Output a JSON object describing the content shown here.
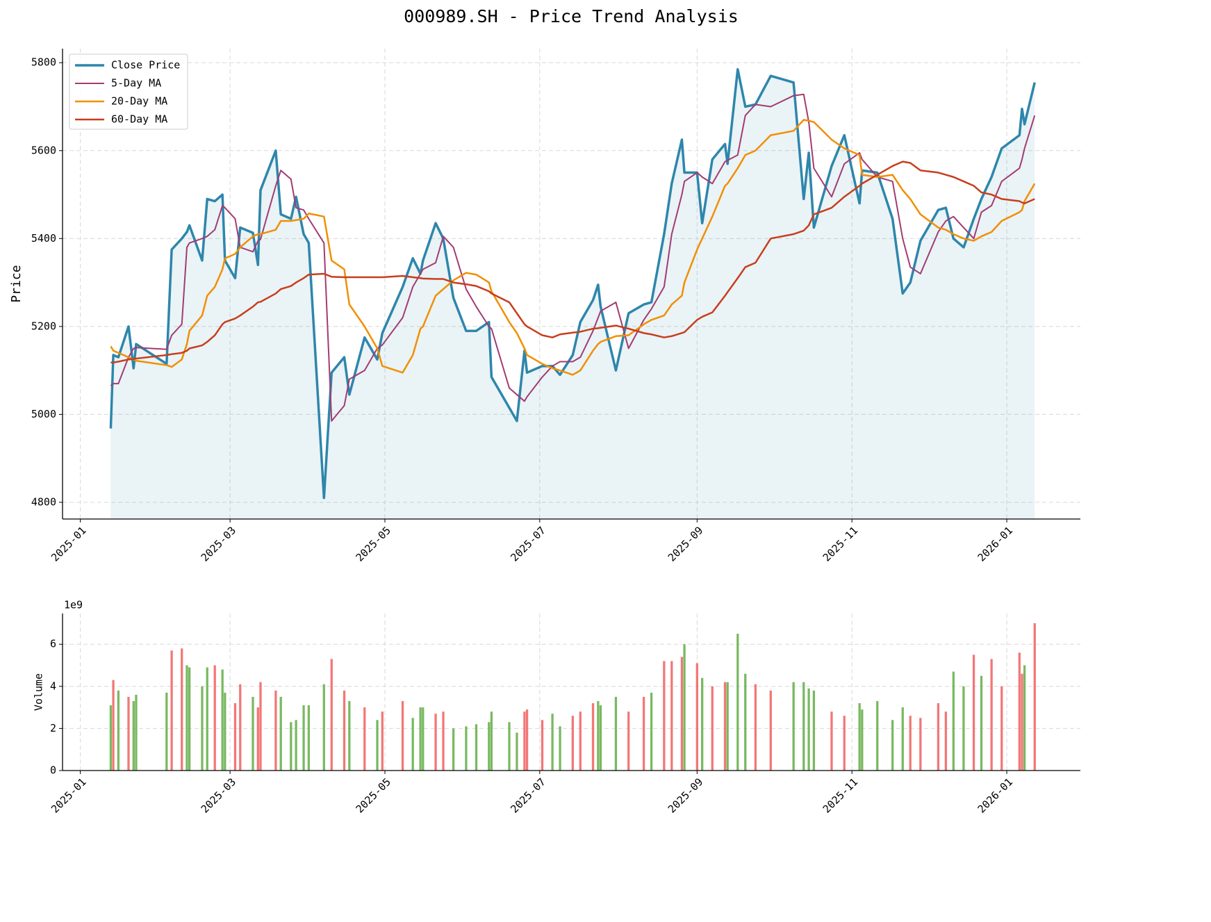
{
  "chart_data": [
    {
      "type": "line",
      "title": "000989.SH - Price Trend Analysis",
      "ylabel": "Price",
      "x": [
        12,
        13,
        15,
        19,
        21,
        22,
        34,
        36,
        40,
        42,
        43,
        48,
        50,
        53,
        56,
        57,
        61,
        63,
        68,
        70,
        71,
        77,
        79,
        83,
        85,
        88,
        90,
        96,
        99,
        104,
        106,
        112,
        117,
        119,
        127,
        131,
        134,
        135,
        140,
        143,
        147,
        152,
        156,
        161,
        162,
        169,
        172,
        175,
        176,
        182,
        186,
        189,
        194,
        197,
        202,
        204,
        205,
        211,
        216,
        222,
        225,
        230,
        233,
        237,
        238,
        243,
        245,
        249,
        254,
        255,
        259,
        262,
        266,
        272,
        281,
        285,
        287,
        289,
        296,
        301,
        307,
        308,
        314,
        320,
        324,
        327,
        331,
        338,
        341,
        344,
        348,
        352,
        355,
        359,
        363,
        370,
        371,
        372,
        376
      ],
      "series": [
        {
          "name": "Close Price",
          "color": "#2e86ab",
          "linewidth": 3.5,
          "fill": true,
          "values": [
            4968,
            5135,
            5130,
            5200,
            5105,
            5160,
            5115,
            5375,
            5400,
            5415,
            5430,
            5350,
            5490,
            5485,
            5500,
            5350,
            5310,
            5425,
            5413,
            5340,
            5510,
            5600,
            5455,
            5445,
            5495,
            5410,
            5390,
            4810,
            5095,
            5130,
            5045,
            5175,
            5125,
            5185,
            5290,
            5355,
            5320,
            5350,
            5435,
            5400,
            5265,
            5190,
            5190,
            5210,
            5085,
            5015,
            4985,
            5145,
            5095,
            5110,
            5110,
            5090,
            5135,
            5210,
            5260,
            5295,
            5245,
            5100,
            5230,
            5250,
            5255,
            5410,
            5525,
            5625,
            5550,
            5550,
            5435,
            5580,
            5615,
            5570,
            5785,
            5700,
            5705,
            5770,
            5755,
            5490,
            5595,
            5425,
            5565,
            5635,
            5480,
            5555,
            5550,
            5445,
            5275,
            5300,
            5395,
            5465,
            5470,
            5400,
            5380,
            5445,
            5490,
            5540,
            5605,
            5635,
            5695,
            5660,
            5755
          ]
        },
        {
          "name": "5-Day MA",
          "color": "#a23b72",
          "linewidth": 2,
          "values": [
            5065,
            5070,
            5070,
            5130,
            5150,
            5152,
            5148,
            5180,
            5205,
            5380,
            5390,
            5400,
            5405,
            5420,
            5475,
            5470,
            5445,
            5380,
            5370,
            5395,
            5398,
            5520,
            5555,
            5535,
            5470,
            5465,
            5445,
            5390,
            4985,
            5020,
            5080,
            5100,
            5150,
            5158,
            5220,
            5290,
            5320,
            5330,
            5345,
            5405,
            5380,
            5285,
            5245,
            5200,
            5195,
            5060,
            5045,
            5030,
            5040,
            5085,
            5110,
            5120,
            5120,
            5130,
            5190,
            5220,
            5235,
            5255,
            5150,
            5215,
            5240,
            5290,
            5410,
            5500,
            5530,
            5550,
            5540,
            5525,
            5575,
            5578,
            5590,
            5680,
            5705,
            5700,
            5725,
            5728,
            5665,
            5560,
            5495,
            5570,
            5595,
            5580,
            5540,
            5530,
            5400,
            5335,
            5320,
            5415,
            5440,
            5450,
            5425,
            5400,
            5460,
            5475,
            5530,
            5560,
            5580,
            5605,
            5680
          ]
        },
        {
          "name": "20-Day MA",
          "color": "#f18f01",
          "linewidth": 2.5,
          "values": [
            5155,
            5145,
            5140,
            5130,
            5125,
            5122,
            5112,
            5108,
            5125,
            5160,
            5190,
            5225,
            5270,
            5290,
            5330,
            5355,
            5365,
            5380,
            5405,
            5410,
            5410,
            5420,
            5440,
            5440,
            5442,
            5445,
            5457,
            5450,
            5350,
            5330,
            5250,
            5200,
            5150,
            5110,
            5095,
            5135,
            5195,
            5200,
            5270,
            5285,
            5305,
            5322,
            5318,
            5300,
            5280,
            5210,
            5185,
            5150,
            5135,
            5115,
            5105,
            5100,
            5090,
            5100,
            5145,
            5160,
            5165,
            5178,
            5180,
            5205,
            5215,
            5225,
            5250,
            5270,
            5300,
            5375,
            5400,
            5450,
            5520,
            5525,
            5560,
            5590,
            5600,
            5635,
            5645,
            5670,
            5668,
            5665,
            5625,
            5605,
            5590,
            5545,
            5540,
            5545,
            5510,
            5490,
            5455,
            5425,
            5420,
            5410,
            5400,
            5395,
            5405,
            5415,
            5440,
            5460,
            5465,
            5485,
            5525
          ]
        },
        {
          "name": "60-Day MA",
          "color": "#c73e1d",
          "linewidth": 2.5,
          "values": [
            5118,
            5118,
            5120,
            5125,
            5126,
            5127,
            5135,
            5137,
            5140,
            5145,
            5150,
            5157,
            5165,
            5180,
            5205,
            5210,
            5218,
            5225,
            5245,
            5255,
            5256,
            5275,
            5285,
            5292,
            5300,
            5310,
            5318,
            5320,
            5313,
            5312,
            5312,
            5312,
            5312,
            5312,
            5315,
            5312,
            5310,
            5309,
            5308,
            5308,
            5300,
            5296,
            5292,
            5280,
            5275,
            5255,
            5230,
            5205,
            5200,
            5180,
            5175,
            5182,
            5186,
            5188,
            5195,
            5196,
            5197,
            5202,
            5195,
            5185,
            5182,
            5175,
            5178,
            5185,
            5187,
            5215,
            5222,
            5232,
            5270,
            5278,
            5310,
            5335,
            5345,
            5400,
            5410,
            5418,
            5430,
            5455,
            5470,
            5495,
            5520,
            5525,
            5545,
            5565,
            5575,
            5572,
            5555,
            5550,
            5545,
            5540,
            5530,
            5520,
            5505,
            5500,
            5490,
            5485,
            5482,
            5480,
            5490
          ]
        }
      ],
      "xlim": [
        -7,
        394
      ],
      "xticks": [
        {
          "value": 0,
          "label": "2025-01"
        },
        {
          "value": 59,
          "label": "2025-03"
        },
        {
          "value": 120,
          "label": "2025-05"
        },
        {
          "value": 181,
          "label": "2025-07"
        },
        {
          "value": 243,
          "label": "2025-09"
        },
        {
          "value": 304,
          "label": "2025-11"
        },
        {
          "value": 365,
          "label": "2026-01"
        }
      ],
      "ylim": [
        4762,
        5832
      ],
      "yticks": [
        4800,
        5000,
        5200,
        5400,
        5600,
        5800
      ],
      "grid": true,
      "legend": "upper left"
    },
    {
      "type": "bar",
      "ylabel": "Volume",
      "offset_text": "1e9",
      "x": [
        12,
        13,
        15,
        19,
        21,
        22,
        34,
        36,
        40,
        42,
        43,
        48,
        50,
        53,
        56,
        57,
        61,
        63,
        68,
        70,
        71,
        77,
        79,
        83,
        85,
        88,
        90,
        96,
        99,
        104,
        106,
        112,
        117,
        119,
        127,
        131,
        134,
        135,
        140,
        143,
        147,
        152,
        156,
        161,
        162,
        169,
        172,
        175,
        176,
        182,
        186,
        189,
        194,
        197,
        202,
        204,
        205,
        211,
        216,
        222,
        225,
        230,
        233,
        237,
        238,
        243,
        245,
        249,
        254,
        255,
        259,
        262,
        266,
        272,
        281,
        285,
        287,
        289,
        296,
        301,
        307,
        308,
        314,
        320,
        324,
        327,
        331,
        338,
        341,
        344,
        348,
        352,
        355,
        359,
        363,
        370,
        371,
        372,
        376
      ],
      "values": [
        3.1,
        4.3,
        3.8,
        3.5,
        3.3,
        3.6,
        3.7,
        5.7,
        5.8,
        5.0,
        4.9,
        4.0,
        4.9,
        5.0,
        4.8,
        3.7,
        3.2,
        4.1,
        3.5,
        3.0,
        4.2,
        3.8,
        3.5,
        2.3,
        2.4,
        3.1,
        3.1,
        4.1,
        5.3,
        3.8,
        3.3,
        3.0,
        2.4,
        2.8,
        3.3,
        2.5,
        3.0,
        3.0,
        2.7,
        2.8,
        2.0,
        2.1,
        2.2,
        2.3,
        2.8,
        2.3,
        1.8,
        2.8,
        2.9,
        2.4,
        2.7,
        2.1,
        2.6,
        2.8,
        3.2,
        3.3,
        3.1,
        3.5,
        2.8,
        3.5,
        3.7,
        5.2,
        5.2,
        5.4,
        6.0,
        5.1,
        4.4,
        4.0,
        4.2,
        4.2,
        6.5,
        4.6,
        4.1,
        3.8,
        4.2,
        4.2,
        3.9,
        3.8,
        2.8,
        2.6,
        3.2,
        2.9,
        3.3,
        2.4,
        3.0,
        2.6,
        2.5,
        3.2,
        2.8,
        4.7,
        4.0,
        5.5,
        4.5,
        5.3,
        4.0,
        5.6,
        4.6,
        5.0,
        7.0
      ],
      "bar_colors": [
        "#6ab150",
        "#f26868",
        "#6ab150",
        "#f26868",
        "#6ab150",
        "#6ab150",
        "#6ab150",
        "#f26868",
        "#f26868",
        "#6ab150",
        "#6ab150",
        "#6ab150",
        "#6ab150",
        "#f26868",
        "#6ab150",
        "#6ab150",
        "#f26868",
        "#f26868",
        "#6ab150",
        "#f26868",
        "#f26868",
        "#f26868",
        "#6ab150",
        "#6ab150",
        "#6ab150",
        "#6ab150",
        "#6ab150",
        "#6ab150",
        "#f26868",
        "#f26868",
        "#6ab150",
        "#f26868",
        "#6ab150",
        "#f26868",
        "#f26868",
        "#6ab150",
        "#6ab150",
        "#6ab150",
        "#f26868",
        "#f26868",
        "#6ab150",
        "#6ab150",
        "#6ab150",
        "#6ab150",
        "#6ab150",
        "#6ab150",
        "#6ab150",
        "#f26868",
        "#f26868",
        "#f26868",
        "#6ab150",
        "#6ab150",
        "#f26868",
        "#f26868",
        "#f26868",
        "#6ab150",
        "#6ab150",
        "#6ab150",
        "#f26868",
        "#f26868",
        "#6ab150",
        "#f26868",
        "#f26868",
        "#f26868",
        "#6ab150",
        "#f26868",
        "#6ab150",
        "#f26868",
        "#f26868",
        "#6ab150",
        "#6ab150",
        "#6ab150",
        "#f26868",
        "#f26868",
        "#6ab150",
        "#6ab150",
        "#6ab150",
        "#6ab150",
        "#f26868",
        "#f26868",
        "#6ab150",
        "#6ab150",
        "#6ab150",
        "#6ab150",
        "#6ab150",
        "#f26868",
        "#f26868",
        "#f26868",
        "#f26868",
        "#6ab150",
        "#6ab150",
        "#f26868",
        "#6ab150",
        "#f26868",
        "#f26868",
        "#f26868",
        "#f26868",
        "#6ab150",
        "#f26868"
      ],
      "xlim": [
        -7,
        394
      ],
      "xticks": [
        {
          "value": 0,
          "label": "2025-01"
        },
        {
          "value": 59,
          "label": "2025-03"
        },
        {
          "value": 120,
          "label": "2025-05"
        },
        {
          "value": 181,
          "label": "2025-07"
        },
        {
          "value": 243,
          "label": "2025-09"
        },
        {
          "value": 304,
          "label": "2025-11"
        },
        {
          "value": 365,
          "label": "2026-01"
        }
      ],
      "ylim": [
        0,
        7.46
      ],
      "yticks": [
        0,
        2,
        4,
        6
      ],
      "grid": true
    }
  ]
}
